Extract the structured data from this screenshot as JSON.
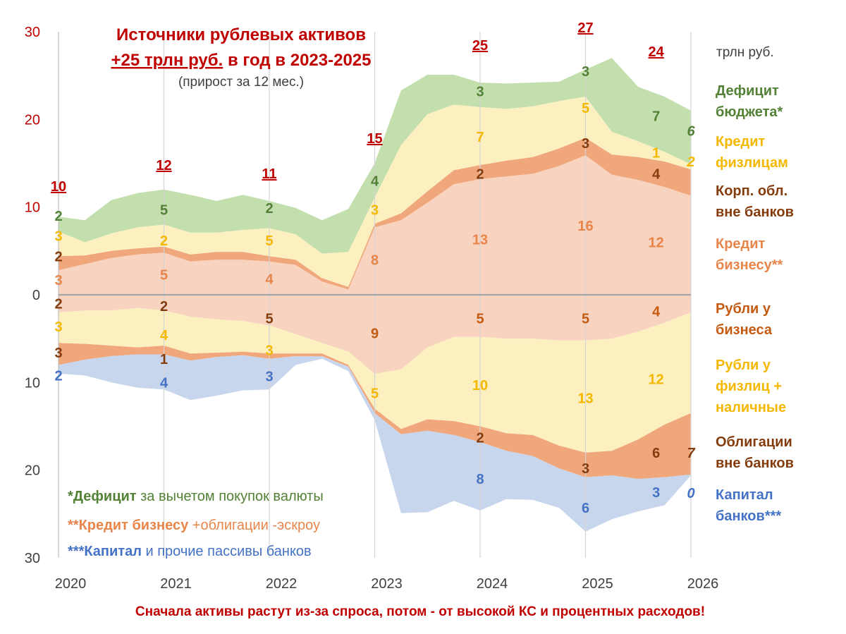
{
  "chart_data": {
    "type": "area",
    "title": "Источники рублевых активов",
    "subtitle_prefix": "+25 трлн руб.",
    "subtitle_suffix": " в год в 2023-2025",
    "subtitle_note": "(прирост за 12 мес.)",
    "unit_label": "трлн руб.",
    "footer": "Сначала активы растут из-за спроса, потом - от высокой КС и процентных расходов!",
    "x_ticks": [
      2020,
      2021,
      2022,
      2023,
      2024,
      2025,
      2026
    ],
    "xlim": [
      2020,
      2026
    ],
    "ylim": [
      -30,
      30
    ],
    "y_tick_labels": [
      {
        "value": 30,
        "label": "30"
      },
      {
        "value": 20,
        "label": "20"
      },
      {
        "value": 10,
        "label": "10"
      },
      {
        "value": 0,
        "label": "0"
      },
      {
        "value": -10,
        "label": "10"
      },
      {
        "value": -20,
        "label": "20"
      },
      {
        "value": -30,
        "label": "30"
      }
    ],
    "x": [
      2020.0,
      2020.25,
      2020.5,
      2020.75,
      2021.0,
      2021.25,
      2021.5,
      2021.75,
      2022.0,
      2022.25,
      2022.5,
      2022.75,
      2023.0,
      2023.25,
      2023.5,
      2023.75,
      2024.0,
      2024.25,
      2024.5,
      2024.75,
      2025.0,
      2025.25,
      2025.5,
      2025.75,
      2026.0
    ],
    "series_positive": [
      {
        "name": "Кредит бизнесу**",
        "color": "#f8d3bf",
        "values": [
          2.8,
          3.5,
          4.2,
          4.6,
          4.8,
          3.8,
          4.0,
          4.0,
          3.8,
          3.4,
          1.5,
          0.6,
          7.7,
          8.5,
          10.5,
          12.6,
          13.2,
          13.5,
          13.8,
          14.7,
          15.9,
          13.7,
          13.1,
          12.3,
          11.3
        ]
      },
      {
        "name": "Корп. обл. вне банков",
        "color": "#f0a77c",
        "values": [
          1.6,
          1.0,
          0.8,
          0.7,
          0.7,
          0.8,
          0.9,
          0.9,
          0.6,
          0.6,
          0.4,
          0.3,
          0.4,
          0.8,
          1.3,
          1.6,
          1.6,
          1.8,
          1.9,
          2.0,
          2.0,
          2.3,
          2.6,
          2.9,
          3.0
        ]
      },
      {
        "name": "Кредит физлицам",
        "color": "#fdf0c0",
        "values": [
          2.8,
          1.5,
          2.0,
          2.4,
          2.5,
          2.5,
          2.2,
          2.5,
          3.2,
          2.9,
          2.8,
          4.0,
          3.0,
          7.8,
          8.8,
          7.5,
          6.6,
          5.9,
          5.8,
          5.4,
          4.7,
          2.6,
          1.8,
          1.1,
          0.6
        ]
      },
      {
        "name": "Дефицит бюджета*",
        "color": "#c2dfad",
        "values": [
          1.7,
          2.5,
          3.8,
          3.9,
          4.0,
          4.3,
          3.6,
          4.0,
          3.1,
          3.0,
          3.8,
          4.9,
          3.9,
          6.2,
          4.5,
          3.4,
          2.8,
          2.9,
          2.7,
          2.2,
          3.1,
          8.4,
          6.2,
          6.3,
          6.1
        ]
      }
    ],
    "series_negative": [
      {
        "name": "Рубли у бизнеса",
        "color": "#f8d3bf",
        "values": [
          2.0,
          1.8,
          1.8,
          1.5,
          1.8,
          2.5,
          2.8,
          3.0,
          3.5,
          4.5,
          5.5,
          6.5,
          9.0,
          8.5,
          6.0,
          4.8,
          4.8,
          5.0,
          5.0,
          5.2,
          5.2,
          5.0,
          4.2,
          3.2,
          2.0
        ]
      },
      {
        "name": "Рубли у физлиц + наличные",
        "color": "#fdf0c0",
        "values": [
          3.5,
          3.8,
          4.0,
          4.5,
          4.0,
          4.2,
          3.8,
          3.5,
          3.2,
          2.2,
          1.2,
          1.5,
          4.0,
          6.8,
          8.2,
          9.6,
          10.2,
          10.8,
          11.0,
          12.0,
          12.8,
          12.8,
          12.3,
          11.6,
          11.5
        ]
      },
      {
        "name": "Облигации вне банков",
        "color": "#f0a77c",
        "values": [
          2.5,
          1.8,
          1.2,
          0.8,
          1.0,
          0.8,
          0.5,
          0.4,
          0.6,
          0.3,
          0.3,
          0.2,
          0.5,
          0.6,
          1.3,
          1.6,
          1.8,
          2.0,
          2.4,
          2.6,
          2.8,
          2.8,
          4.5,
          6.0,
          7.0
        ]
      },
      {
        "name": "Капитал банков***",
        "color": "#c8d6ed",
        "values": [
          1.0,
          1.8,
          3.0,
          3.8,
          4.0,
          4.5,
          4.4,
          4.0,
          3.5,
          1.0,
          0.3,
          0.5,
          0.8,
          9.0,
          9.3,
          7.5,
          7.8,
          5.5,
          5.0,
          4.5,
          6.2,
          5.0,
          3.7,
          3.2,
          0.1
        ]
      }
    ],
    "totals": [
      {
        "year": 2020,
        "label": "10"
      },
      {
        "year": 2021,
        "label": "12"
      },
      {
        "year": 2022,
        "label": "11"
      },
      {
        "year": 2023,
        "label": "15"
      },
      {
        "year": 2024,
        "label": "25"
      },
      {
        "year": 2025,
        "label": "27"
      },
      {
        "year": 2025.67,
        "label": "24"
      }
    ],
    "data_labels": [
      {
        "x": 2020,
        "value": 2,
        "y": 9.0,
        "label": "2",
        "color": "#538135"
      },
      {
        "x": 2020,
        "value": 3,
        "y": 6.7,
        "label": "3",
        "color": "#f5b800"
      },
      {
        "x": 2020,
        "value": 2,
        "y": 4.4,
        "label": "2",
        "color": "#843c0c"
      },
      {
        "x": 2020,
        "value": 3,
        "y": 1.7,
        "label": "3",
        "color": "#e8854a"
      },
      {
        "x": 2020,
        "value": 2,
        "y": -1.0,
        "label": "2",
        "color": "#843c0c"
      },
      {
        "x": 2020,
        "value": 3,
        "y": -3.6,
        "label": "3",
        "color": "#f5b800"
      },
      {
        "x": 2020,
        "value": 3,
        "y": -6.6,
        "label": "3",
        "color": "#843c0c"
      },
      {
        "x": 2020,
        "value": 2,
        "y": -9.2,
        "label": "2",
        "color": "#4472c4"
      },
      {
        "x": 2021,
        "value": 5,
        "y": 9.7,
        "label": "5",
        "color": "#538135"
      },
      {
        "x": 2021,
        "value": 2,
        "y": 6.2,
        "label": "2",
        "color": "#f5b800"
      },
      {
        "x": 2021,
        "value": 5,
        "y": 2.3,
        "label": "5",
        "color": "#e8854a"
      },
      {
        "x": 2021,
        "value": 2,
        "y": -1.3,
        "label": "2",
        "color": "#843c0c"
      },
      {
        "x": 2021,
        "value": 4,
        "y": -4.6,
        "label": "4",
        "color": "#f5b800"
      },
      {
        "x": 2021,
        "value": 1,
        "y": -7.3,
        "label": "1",
        "color": "#843c0c"
      },
      {
        "x": 2021,
        "value": 4,
        "y": -10.0,
        "label": "4",
        "color": "#4472c4"
      },
      {
        "x": 2022,
        "value": 2,
        "y": 9.9,
        "label": "2",
        "color": "#538135"
      },
      {
        "x": 2022,
        "value": 5,
        "y": 6.2,
        "label": "5",
        "color": "#f5b800"
      },
      {
        "x": 2022,
        "value": 4,
        "y": 1.8,
        "label": "4",
        "color": "#e8854a"
      },
      {
        "x": 2022,
        "value": 5,
        "y": -2.7,
        "label": "5",
        "color": "#843c0c"
      },
      {
        "x": 2022,
        "value": 3,
        "y": -6.3,
        "label": "3",
        "color": "#f5b800"
      },
      {
        "x": 2022,
        "value": 3,
        "y": -9.3,
        "label": "3",
        "color": "#4472c4"
      },
      {
        "x": 2023,
        "value": 4,
        "y": 13.0,
        "label": "4",
        "color": "#538135"
      },
      {
        "x": 2023,
        "value": 3,
        "y": 9.7,
        "label": "3",
        "color": "#f5b800"
      },
      {
        "x": 2023,
        "value": 8,
        "y": 4.0,
        "label": "8",
        "color": "#e8854a"
      },
      {
        "x": 2023,
        "value": 9,
        "y": -4.4,
        "label": "9",
        "color": "#c55a11"
      },
      {
        "x": 2023,
        "value": 5,
        "y": -11.2,
        "label": "5",
        "color": "#f5b800"
      },
      {
        "x": 2024,
        "value": 3,
        "y": 23.2,
        "label": "3",
        "color": "#538135"
      },
      {
        "x": 2024,
        "value": 7,
        "y": 18.0,
        "label": "7",
        "color": "#f5b800"
      },
      {
        "x": 2024,
        "value": 2,
        "y": 13.8,
        "label": "2",
        "color": "#843c0c"
      },
      {
        "x": 2024,
        "value": 13,
        "y": 6.3,
        "label": "13",
        "color": "#e8854a"
      },
      {
        "x": 2024,
        "value": 5,
        "y": -2.7,
        "label": "5",
        "color": "#c55a11"
      },
      {
        "x": 2024,
        "value": 10,
        "y": -10.3,
        "label": "10",
        "color": "#f5b800"
      },
      {
        "x": 2024,
        "value": 2,
        "y": -16.3,
        "label": "2",
        "color": "#843c0c"
      },
      {
        "x": 2024,
        "value": 8,
        "y": -21.0,
        "label": "8",
        "color": "#4472c4"
      },
      {
        "x": 2025,
        "value": 3,
        "y": 25.5,
        "label": "3",
        "color": "#538135"
      },
      {
        "x": 2025,
        "value": 5,
        "y": 21.3,
        "label": "5",
        "color": "#f5b800"
      },
      {
        "x": 2025,
        "value": 3,
        "y": 17.3,
        "label": "3",
        "color": "#843c0c"
      },
      {
        "x": 2025,
        "value": 16,
        "y": 7.9,
        "label": "16",
        "color": "#e8854a"
      },
      {
        "x": 2025,
        "value": 5,
        "y": -2.7,
        "label": "5",
        "color": "#c55a11"
      },
      {
        "x": 2025,
        "value": 13,
        "y": -11.8,
        "label": "13",
        "color": "#f5b800"
      },
      {
        "x": 2025,
        "value": 3,
        "y": -19.8,
        "label": "3",
        "color": "#843c0c"
      },
      {
        "x": 2025,
        "value": 6,
        "y": -24.3,
        "label": "6",
        "color": "#4472c4"
      },
      {
        "x": 2025.67,
        "value": 7,
        "y": 20.4,
        "label": "7",
        "color": "#538135"
      },
      {
        "x": 2025.67,
        "value": 1,
        "y": 16.2,
        "label": "1",
        "color": "#f5b800"
      },
      {
        "x": 2025.67,
        "value": 4,
        "y": 13.8,
        "label": "4",
        "color": "#843c0c"
      },
      {
        "x": 2025.67,
        "value": 12,
        "y": 6.0,
        "label": "12",
        "color": "#e8854a"
      },
      {
        "x": 2025.67,
        "value": 4,
        "y": -1.9,
        "label": "4",
        "color": "#c55a11"
      },
      {
        "x": 2025.67,
        "value": 12,
        "y": -9.6,
        "label": "12",
        "color": "#f5b800"
      },
      {
        "x": 2025.67,
        "value": 6,
        "y": -18.0,
        "label": "6",
        "color": "#843c0c"
      },
      {
        "x": 2025.67,
        "value": 3,
        "y": -22.5,
        "label": "3",
        "color": "#4472c4"
      },
      {
        "x": 2026,
        "value": 6,
        "y": 18.7,
        "label": "6",
        "color": "#538135",
        "italic": true
      },
      {
        "x": 2026,
        "value": 2,
        "y": 15.2,
        "label": "2",
        "color": "#f5b800",
        "italic": true
      },
      {
        "x": 2026,
        "value": 7,
        "y": -18.0,
        "label": "7",
        "color": "#843c0c",
        "italic": true
      },
      {
        "x": 2026,
        "value": 0,
        "y": -22.6,
        "label": "0",
        "color": "#4472c4",
        "italic": true
      }
    ],
    "legend_right": [
      {
        "lines": [
          "Дефицит",
          "бюджета*"
        ],
        "color": "#538135"
      },
      {
        "lines": [
          "Кредит",
          "физлицам"
        ],
        "color": "#f5b800"
      },
      {
        "lines": [
          "Корп. обл.",
          "вне банков"
        ],
        "color": "#843c0c"
      },
      {
        "lines": [
          "Кредит",
          "бизнесу**"
        ],
        "color": "#e8854a"
      },
      {
        "lines": [
          "Рубли у",
          "бизнеса"
        ],
        "color": "#c55a11"
      },
      {
        "lines": [
          "Рубли у",
          "физлиц +",
          "наличные"
        ],
        "color": "#f5b800"
      },
      {
        "lines": [
          "Облигации",
          "вне банков"
        ],
        "color": "#843c0c"
      },
      {
        "lines": [
          "Капитал",
          "банков***"
        ],
        "color": "#4472c4"
      }
    ],
    "notes": [
      {
        "strong": "*Дефицит",
        "rest": " за вычетом покупок валюты",
        "color": "#538135"
      },
      {
        "strong": "**Кредит бизнесу",
        "rest": " +облигации -эскроу",
        "color": "#e8854a"
      },
      {
        "strong": "***Капитал",
        "rest": " и прочие пассивы банков",
        "color": "#4472c4"
      }
    ]
  }
}
